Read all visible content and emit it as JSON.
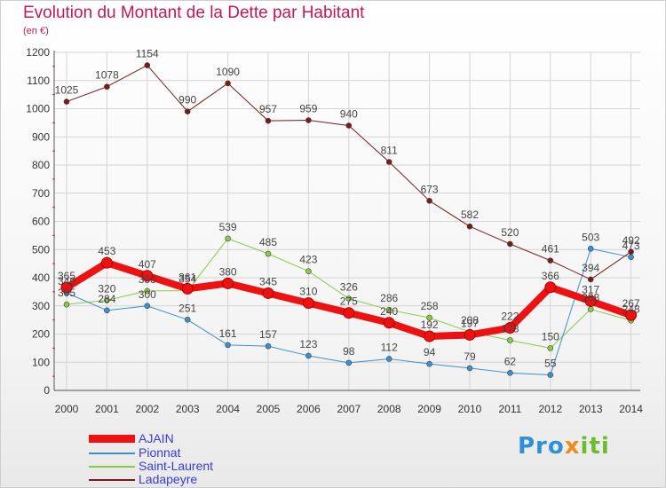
{
  "title": "Evolution du Montant de la Dette par Habitant",
  "subtitle": "(en €)",
  "logo": {
    "part1": "Pro",
    "part2": "x",
    "part3": "iti"
  },
  "chart_data": {
    "type": "line",
    "x": [
      "2000",
      "2001",
      "2002",
      "2003",
      "2004",
      "2005",
      "2006",
      "2007",
      "2008",
      "2009",
      "2010",
      "2011",
      "2012",
      "2013",
      "2014"
    ],
    "ylim": [
      0,
      1200
    ],
    "yticks": [
      0,
      100,
      200,
      300,
      400,
      500,
      600,
      700,
      800,
      900,
      1000,
      1100,
      1200
    ],
    "grid": true,
    "legend_position": "bottom-left",
    "series": [
      {
        "name": "AJAIN",
        "color": "#ee1111",
        "values": [
          365,
          453,
          407,
          361,
          380,
          345,
          310,
          275,
          240,
          192,
          197,
          222,
          366,
          317,
          267
        ],
        "labels": [
          "365",
          "453",
          "407",
          "361",
          "380",
          "345",
          "310",
          "275",
          "240",
          "192",
          "197",
          "222",
          "366",
          "317",
          "267"
        ]
      },
      {
        "name": "Pionnat",
        "color": "#3a90d0",
        "values": [
          346,
          284,
          300,
          251,
          161,
          157,
          123,
          98,
          112,
          94,
          79,
          62,
          55,
          503,
          473
        ],
        "labels": [
          "346",
          "284",
          "300",
          "251",
          "161",
          "157",
          "123",
          "98",
          "112",
          "94",
          "79",
          "62",
          "55",
          "503",
          "473"
        ]
      },
      {
        "name": "Saint-Laurent",
        "color": "#88cc44",
        "values": [
          305,
          320,
          353,
          354,
          539,
          485,
          423,
          326,
          286,
          258,
          208,
          178,
          150,
          288,
          248
        ],
        "labels": [
          "305",
          "320",
          "353",
          "354",
          "539",
          "485",
          "423",
          "326",
          "286",
          "258",
          "208",
          "178",
          "150",
          "288",
          "248"
        ]
      },
      {
        "name": "Ladapeyre",
        "color": "#7a1a1a",
        "values": [
          1025,
          1078,
          1154,
          990,
          1090,
          957,
          959,
          940,
          811,
          673,
          582,
          520,
          461,
          394,
          492
        ],
        "labels": [
          "1025",
          "1078",
          "1154",
          "990",
          "1090",
          "957",
          "959",
          "940",
          "811",
          "673",
          "582",
          "520",
          "461",
          "394",
          "492"
        ]
      }
    ]
  }
}
